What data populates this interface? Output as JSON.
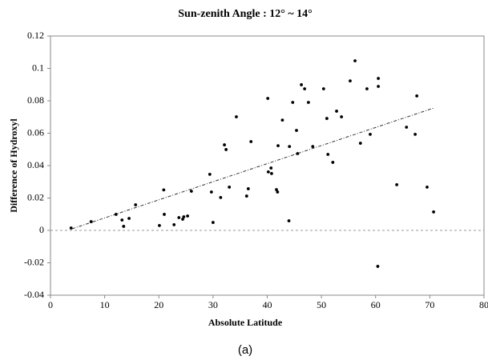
{
  "chart_data": {
    "type": "scatter",
    "title": "Sun-zenith Angle : 12° ~ 14°",
    "x_label": "Absolute Latitude",
    "y_label": "Difference of Hydroxyl",
    "caption": "(a)",
    "xlim": [
      0,
      80
    ],
    "xticks": [
      0,
      10,
      20,
      30,
      40,
      50,
      60,
      70,
      80
    ],
    "ylim": [
      -0.04,
      0.12
    ],
    "yticks": [
      -0.04,
      -0.02,
      0,
      0.02,
      0.04,
      0.06,
      0.08,
      0.1,
      0.12
    ],
    "zero_line": true,
    "series": [
      {
        "color": "#000000",
        "x": [
          3.8,
          7.5,
          12.1,
          13.2,
          13.5,
          14.5,
          15.7,
          20.1,
          20.9,
          21.0,
          22.8,
          23.7,
          24.4,
          24.6,
          25.3,
          26.0,
          29.4,
          29.7,
          30.0,
          31.4,
          32.1,
          32.4,
          33.0,
          34.3,
          36.2,
          36.5,
          37.0,
          40.1,
          40.2,
          40.7,
          40.8,
          41.7,
          41.9,
          42.0,
          42.8,
          44.0,
          44.1,
          44.7,
          45.4,
          45.6,
          46.3,
          46.9,
          47.6,
          48.4,
          50.4,
          51.0,
          51.2,
          52.1,
          52.8,
          53.7,
          55.3,
          56.2,
          57.2,
          58.4,
          59.0,
          60.5,
          60.5,
          60.4,
          63.9,
          65.7,
          67.3,
          67.6,
          69.5,
          70.7
        ],
        "y": [
          0.0015,
          0.0054,
          0.0099,
          0.0064,
          0.0025,
          0.0074,
          0.0158,
          0.003,
          0.025,
          0.0099,
          0.0035,
          0.0079,
          0.0069,
          0.0084,
          0.0089,
          0.0242,
          0.0346,
          0.0237,
          0.0049,
          0.0203,
          0.0528,
          0.0499,
          0.0267,
          0.0701,
          0.0212,
          0.0257,
          0.0548,
          0.0815,
          0.0361,
          0.0385,
          0.0351,
          0.0252,
          0.0237,
          0.0523,
          0.0681,
          0.0059,
          0.0518,
          0.079,
          0.0617,
          0.0474,
          0.0899,
          0.0874,
          0.079,
          0.0518,
          0.0874,
          0.0691,
          0.0469,
          0.042,
          0.0736,
          0.0701,
          0.0923,
          0.1047,
          0.0538,
          0.0874,
          0.0593,
          0.0889,
          0.0938,
          -0.0222,
          0.0282,
          0.0637,
          0.0593,
          0.083,
          0.0267,
          0.0114
        ]
      }
    ],
    "trendline": {
      "x": [
        4,
        70.7
      ],
      "y": [
        0.001,
        0.0755
      ]
    }
  }
}
